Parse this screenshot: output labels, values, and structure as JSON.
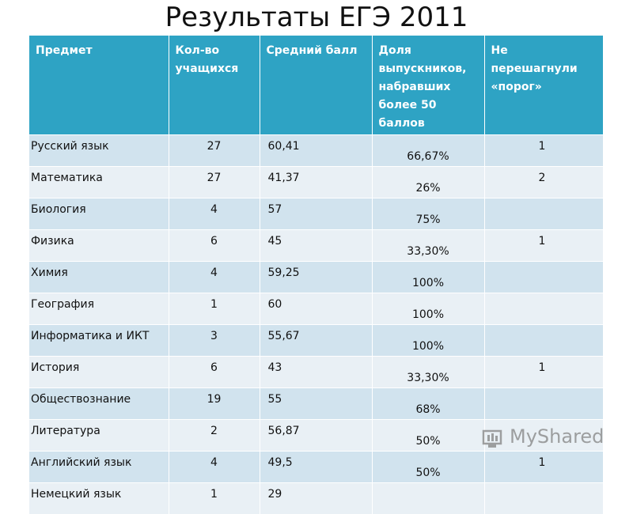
{
  "title": "Результаты ЕГЭ 2011",
  "table": {
    "headers": [
      "Предмет",
      "Кол-во учащихся",
      "Средний балл",
      "Доля выпускников, набравших более  50 баллов",
      "Не перешагнули «порог»"
    ],
    "rows": [
      {
        "subject": "Русский язык",
        "students": "27",
        "avg": "60,41",
        "share": "66,67%",
        "failed": "1"
      },
      {
        "subject": "Математика",
        "students": "27",
        "avg": "41,37",
        "share": "26%",
        "failed": "2"
      },
      {
        "subject": "Биология",
        "students": "4",
        "avg": "57",
        "share": "75%"
      },
      {
        "subject": "Физика",
        "students": "6",
        "avg": "45",
        "share": "33,30%",
        "failed": "1"
      },
      {
        "subject": "Химия",
        "students": "4",
        "avg": "59,25",
        "share": "100%"
      },
      {
        "subject": "География",
        "students": "1",
        "avg": "60",
        "share": "100%"
      },
      {
        "subject": "Информатика и ИКТ",
        "students": "3",
        "avg": "55,67",
        "share": "100%"
      },
      {
        "subject": "История",
        "students": "6",
        "avg": "43",
        "share": "33,30%",
        "failed": "1"
      },
      {
        "subject": "Обществознание",
        "students": "19",
        "avg": "55",
        "share": "68%"
      },
      {
        "subject": "Литература",
        "students": "2",
        "avg": "56,87",
        "share": "50%"
      },
      {
        "subject": "Английский язык",
        "students": "4",
        "avg": "49,5",
        "share": "50%",
        "failed": "1"
      },
      {
        "subject": "Немецкий язык",
        "students": "1",
        "avg": "29"
      }
    ]
  },
  "watermark": "MyShared"
}
